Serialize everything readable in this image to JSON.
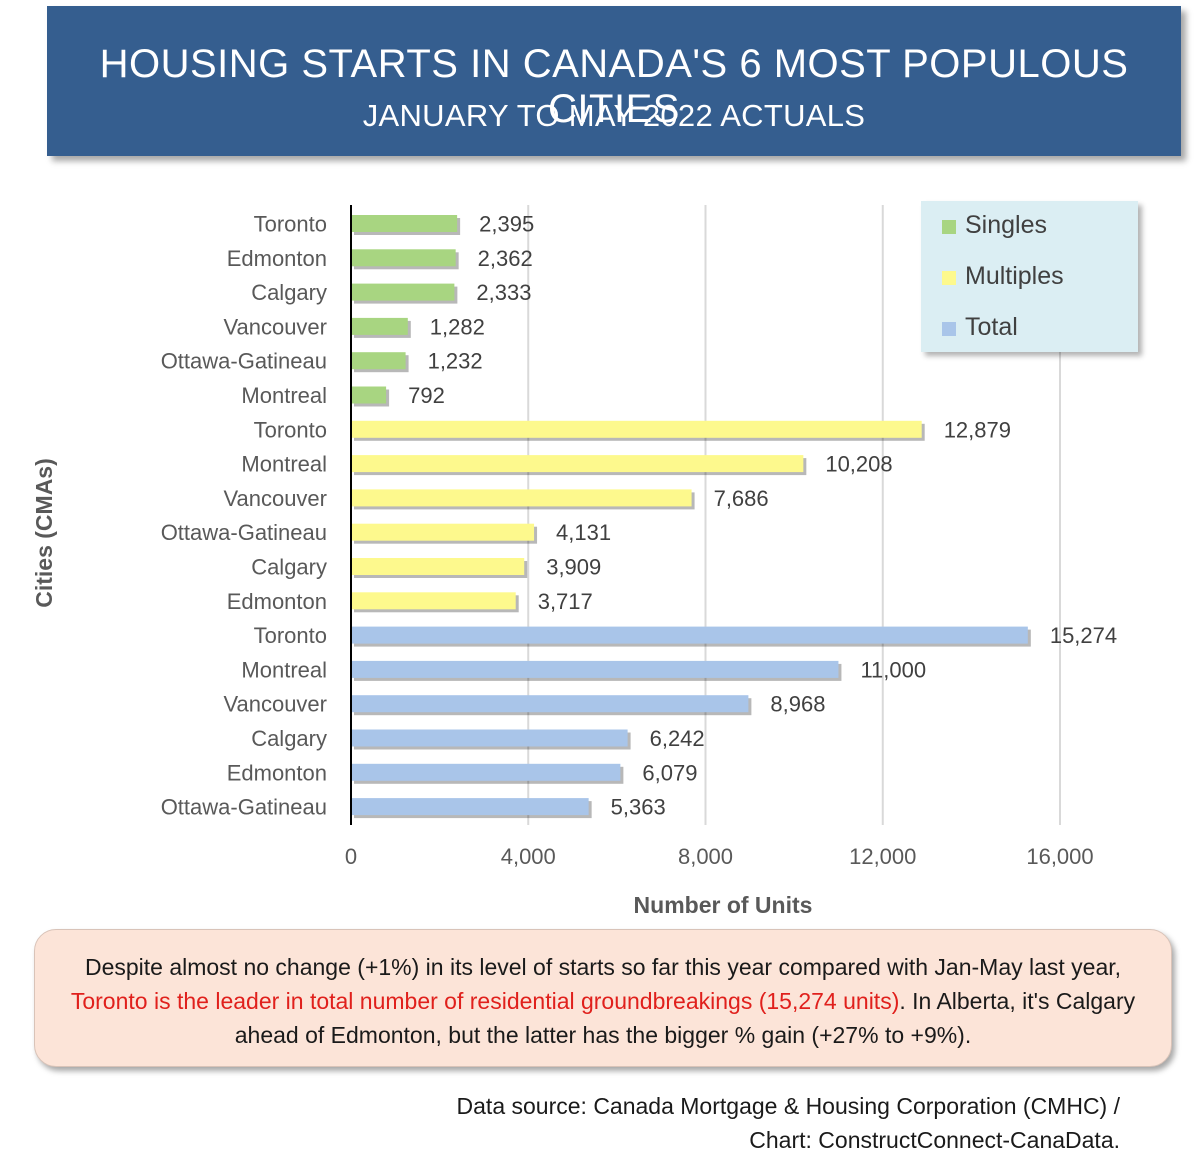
{
  "title": {
    "line1": "HOUSING STARTS IN CANADA'S 6 MOST POPULOUS CITIES",
    "line2": "JANUARY TO MAY 2022 ACTUALS"
  },
  "colors": {
    "singles": "#a8d581",
    "multiples": "#fdf98d",
    "total": "#a9c5e9",
    "title_bg": "#355e8f",
    "legend_bg": "#dbeef3",
    "note_bg": "#fce4d8",
    "highlight": "#e0201c"
  },
  "chart_data": {
    "type": "bar",
    "orientation": "horizontal",
    "xlabel": "Number of Units",
    "ylabel": "Cities (CMAs)",
    "xlim": [
      0,
      16000
    ],
    "xticks": [
      "0",
      "4,000",
      "8,000",
      "12,000",
      "16,000"
    ],
    "grid": true,
    "legend_position": "top-right",
    "legend": [
      "Singles",
      "Multiples",
      "Total"
    ],
    "series": [
      {
        "name": "Singles",
        "categories": [
          "Toronto",
          "Edmonton",
          "Calgary",
          "Vancouver",
          "Ottawa-Gatineau",
          "Montreal"
        ],
        "values": [
          2395,
          2362,
          2333,
          1282,
          1232,
          792
        ],
        "labels": [
          "2,395",
          "2,362",
          "2,333",
          "1,282",
          "1,232",
          "792"
        ]
      },
      {
        "name": "Multiples",
        "categories": [
          "Toronto",
          "Montreal",
          "Vancouver",
          "Ottawa-Gatineau",
          "Calgary",
          "Edmonton"
        ],
        "values": [
          12879,
          10208,
          7686,
          4131,
          3909,
          3717
        ],
        "labels": [
          "12,879",
          "10,208",
          "7,686",
          "4,131",
          "3,909",
          "3,717"
        ]
      },
      {
        "name": "Total",
        "categories": [
          "Toronto",
          "Montreal",
          "Vancouver",
          "Calgary",
          "Edmonton",
          "Ottawa-Gatineau"
        ],
        "values": [
          15274,
          11000,
          8968,
          6242,
          6079,
          5363
        ],
        "labels": [
          "15,274",
          "11,000",
          "8,968",
          "6,242",
          "6,079",
          "5,363"
        ]
      }
    ]
  },
  "note": {
    "part1": "Despite almost no change (+1%) in its level of starts so far this year compared with Jan-May last year, ",
    "highlight": "Toronto is the leader in total number of residential groundbreakings (15,274 units)",
    "part2": ". In Alberta, it's Calgary ahead of Edmonton, but the latter has the bigger % gain (+27% to +9%)."
  },
  "source": {
    "line1": "Data source: Canada Mortgage & Housing Corporation (CMHC) /",
    "line2": "Chart: ConstructConnect-CanaData."
  }
}
